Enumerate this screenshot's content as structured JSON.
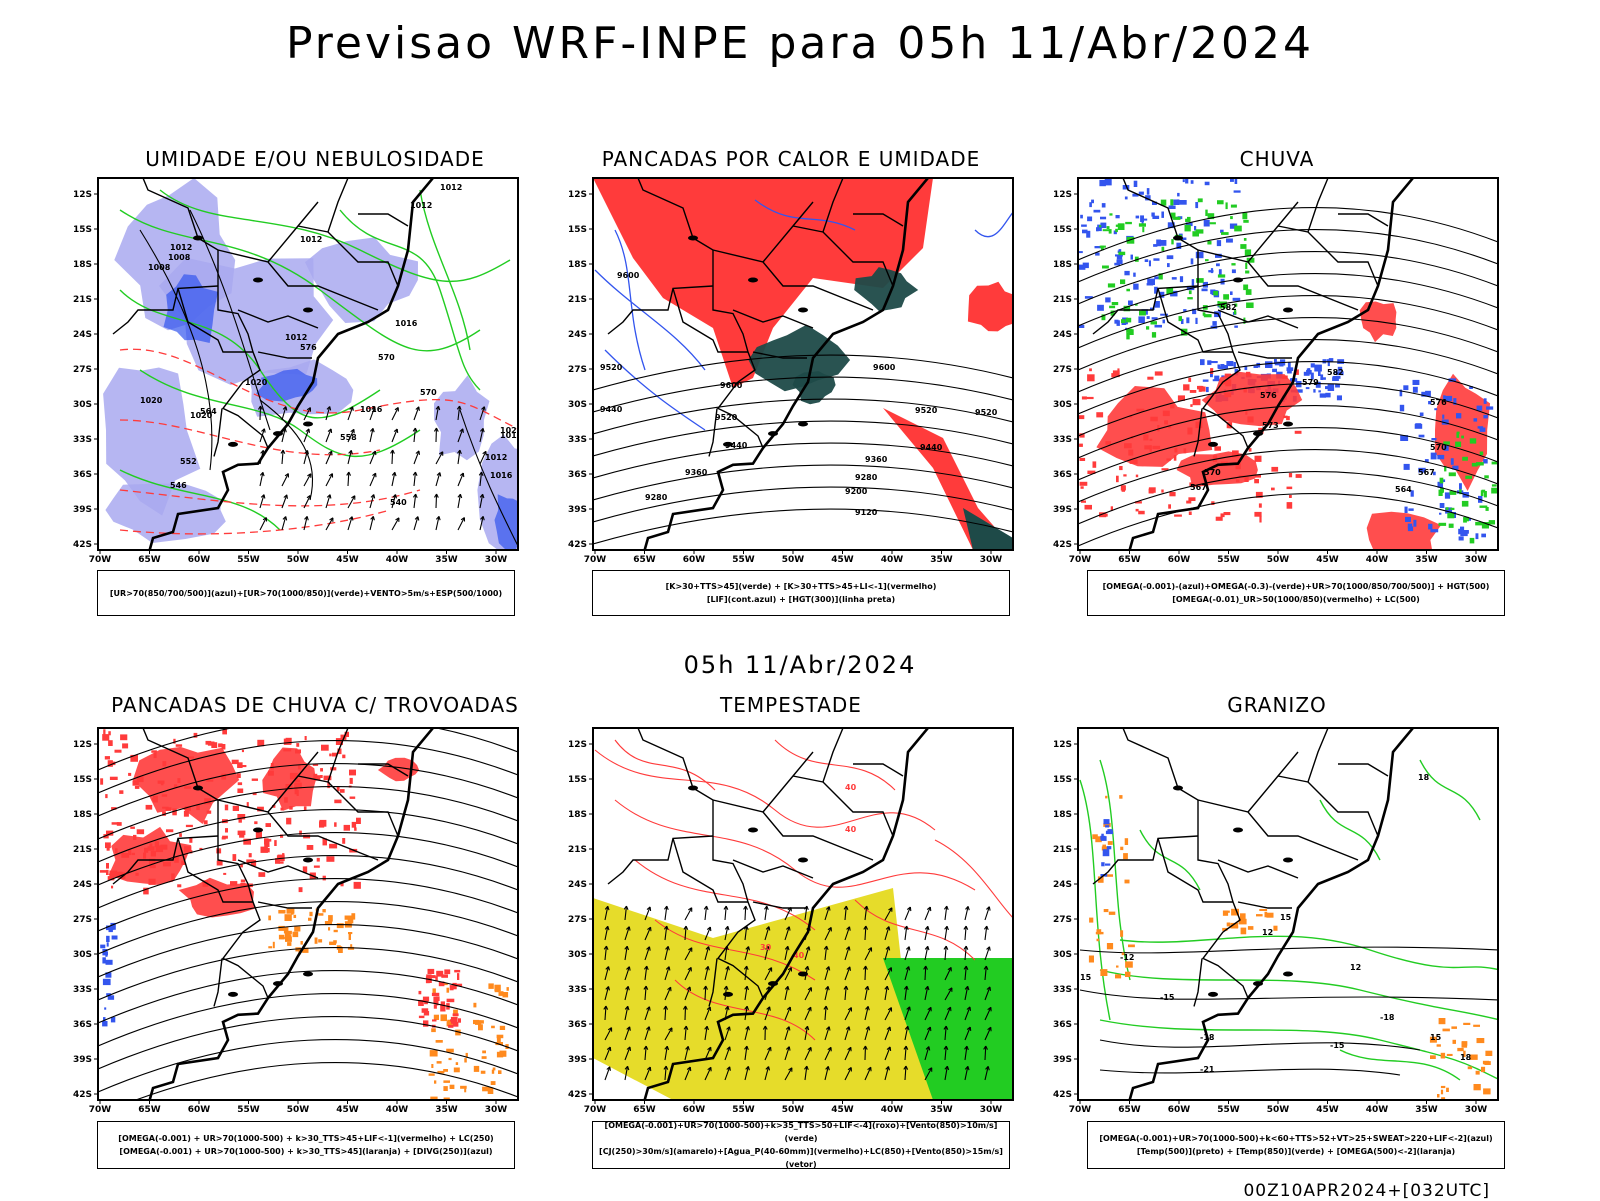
{
  "title": "Previsao WRF-INPE  para 05h 11/Abr/2024",
  "subtitle": "05h 11/Abr/2024",
  "footer": "00Z10APR2024+[032UTC]",
  "axes": {
    "lat_labels": [
      "12S",
      "15S",
      "18S",
      "21S",
      "24S",
      "27S",
      "30S",
      "33S",
      "36S",
      "39S",
      "42S"
    ],
    "lon_labels": [
      "70W",
      "65W",
      "60W",
      "55W",
      "50W",
      "45W",
      "40W",
      "35W",
      "30W"
    ]
  },
  "colors": {
    "blue": "#3355ee",
    "green": "#22cc22",
    "red": "#ff3b3b",
    "dark_teal": "#1e4a48",
    "yellow": "#e6dc2a",
    "orange": "#ff8a1e",
    "lavender": "#a9a9f0",
    "black": "#000000"
  },
  "panels": [
    {
      "title": "UMIDADE E/OU NEBULOSIDADE",
      "legend": [
        "[UR>70(850/700/500)](azul)+[UR>70(1000/850)](verde)+VENTO>5m/s+ESP(500/1000)"
      ],
      "labels": [
        "1012",
        "1012",
        "1012",
        "1012",
        "1008",
        "1016",
        "1012",
        "1016",
        "1020",
        "1020",
        "1020",
        "1024",
        "1016",
        "1012",
        "1016",
        "1016",
        "1008",
        "570",
        "576",
        "570",
        "564",
        "552",
        "546",
        "540",
        "558"
      ]
    },
    {
      "title": "PANCADAS POR CALOR E UMIDADE",
      "legend": [
        "[K>30+TTS>45](verde) + [K>30+TTS>45+LI<-1](vermelho)",
        "[LIF](cont.azul) + [HGT(300)](linha preta)"
      ],
      "labels": [
        "9600",
        "9520",
        "9440",
        "9600",
        "9600",
        "9520",
        "9440",
        "9360",
        "9280",
        "9280",
        "9200",
        "9120",
        "9360",
        "9520",
        "9440",
        "9520"
      ]
    },
    {
      "title": "CHUVA",
      "legend": [
        "[OMEGA(-0.001)-(azul)+OMEGA(-0.3)-(verde)+UR>70(1000/850/700/500)] + HGT(500)",
        "[OMEGA(-0.01)_UR>50(1000/850)(vermelho) + LC(500)"
      ],
      "labels": [
        "582",
        "582",
        "579",
        "576",
        "573",
        "570",
        "567",
        "564",
        "576",
        "570",
        "567"
      ]
    },
    {
      "title": "PANCADAS DE CHUVA C/ TROVOADAS",
      "legend": [
        "[OMEGA(-0.001) + UR>70(1000-500) + k>30_TTS>45+LIF<-1](vermelho) + LC(250)",
        "[OMEGA(-0.001) + UR>70(1000-500) + k>30_TTS>45](laranja) + [DIVG(250)](azul)"
      ],
      "labels": []
    },
    {
      "title": "TEMPESTADE",
      "legend": [
        "[OMEGA(-0.001)+UR>70(1000-500)+k>35_TTS>50+LIF<-4](roxo)+[Vento(850)>10m/s](verde)",
        "[CJ(250)>30m/s](amarelo)+[Agua_P(40-60mm)](vermelho)+LC(850)+[Vento(850)>15m/s](vetor)"
      ],
      "labels": [
        "40",
        "40",
        "30",
        "40"
      ]
    },
    {
      "title": "GRANIZO",
      "legend": [
        "[OMEGA(-0.001)+UR>70(1000-500)+k<60+TTS>52+VT>25+SWEAT>220+LIF<-2](azul)",
        "[Temp(500)](preto) + [Temp(850)](verde) + [OMEGA(500)<-2](laranja)"
      ],
      "labels": [
        "-12",
        "-15",
        "-18",
        "-21",
        "-15",
        "-18",
        "12",
        "15",
        "18",
        "15",
        "12",
        "15",
        "18"
      ]
    }
  ]
}
